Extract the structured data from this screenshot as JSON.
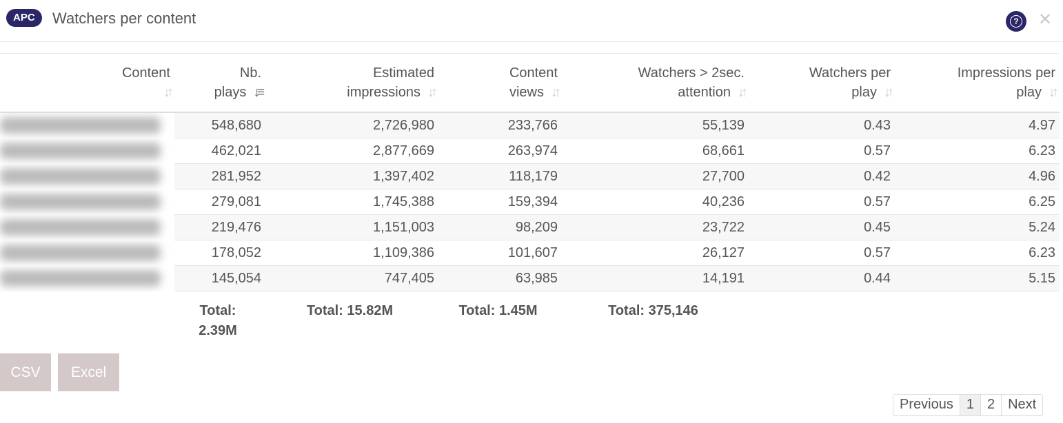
{
  "header": {
    "badge": "APC",
    "title": "Watchers per content"
  },
  "columns": [
    {
      "line1": "Content",
      "line2": ""
    },
    {
      "line1": "Nb.",
      "line2": "plays"
    },
    {
      "line1": "Estimated",
      "line2": "impressions"
    },
    {
      "line1": "Content",
      "line2": "views"
    },
    {
      "line1": "Watchers > 2sec.",
      "line2": "attention"
    },
    {
      "line1": "Watchers per",
      "line2": "play"
    },
    {
      "line1": "Impressions per",
      "line2": "play"
    }
  ],
  "rows": [
    [
      "548,680",
      "2,726,980",
      "233,766",
      "55,139",
      "0.43",
      "4.97"
    ],
    [
      "462,021",
      "2,877,669",
      "263,974",
      "68,661",
      "0.57",
      "6.23"
    ],
    [
      "281,952",
      "1,397,402",
      "118,179",
      "27,700",
      "0.42",
      "4.96"
    ],
    [
      "279,081",
      "1,745,388",
      "159,394",
      "40,236",
      "0.57",
      "6.25"
    ],
    [
      "219,476",
      "1,151,003",
      "98,209",
      "23,722",
      "0.45",
      "5.24"
    ],
    [
      "178,052",
      "1,109,386",
      "101,607",
      "26,127",
      "0.57",
      "6.23"
    ],
    [
      "145,054",
      "747,405",
      "63,985",
      "14,191",
      "0.44",
      "5.15"
    ]
  ],
  "totals": {
    "plays_line1": "Total:",
    "plays_line2": "2.39M",
    "impressions": "Total: 15.82M",
    "views": "Total: 1.45M",
    "watchers": "Total: 375,146"
  },
  "buttons": {
    "csv": "CSV",
    "excel": "Excel"
  },
  "pagination": {
    "previous": "Previous",
    "pages": [
      "1",
      "2"
    ],
    "next": "Next"
  },
  "icons": {
    "help": "help-circle-icon",
    "close": "close-icon",
    "sort": "sort-icon"
  },
  "colors": {
    "badge": "#2a2668",
    "button": "#d5c8c8"
  }
}
